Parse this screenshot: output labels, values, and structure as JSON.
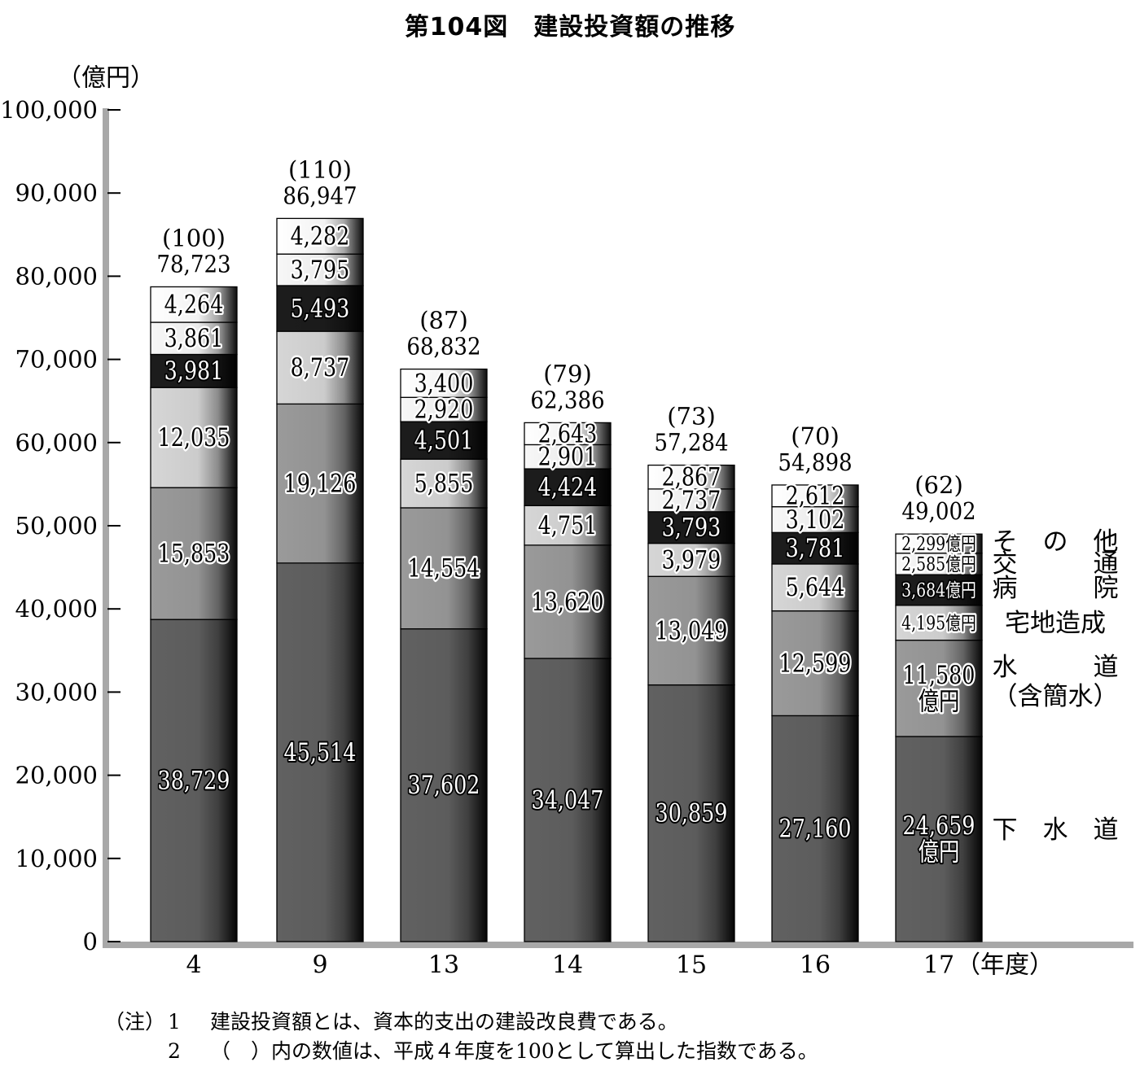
{
  "title": "第104図　建設投資額の推移",
  "notes": {
    "prefix": "（注）",
    "items": [
      {
        "num": "1",
        "text": "建設投資額とは、資本的支出の建設改良費である。"
      },
      {
        "num": "2",
        "text": "（　）内の数値は、平成４年度を100として算出した指数である。"
      }
    ]
  },
  "chart_data": {
    "type": "bar",
    "stacked": true,
    "ylabel": "（億円）",
    "xlabel": "（年度）",
    "ylim": [
      0,
      100000
    ],
    "yticks": [
      "0",
      "10,000",
      "20,000",
      "30,000",
      "40,000",
      "50,000",
      "60,000",
      "70,000",
      "80,000",
      "90,000",
      "100,000"
    ],
    "categories": [
      "4",
      "9",
      "13",
      "14",
      "15",
      "16",
      "17"
    ],
    "totals": [
      "78,723",
      "86,947",
      "68,832",
      "62,386",
      "57,284",
      "54,898",
      "49,002"
    ],
    "total_values": [
      78723,
      86947,
      68832,
      62386,
      57284,
      54898,
      49002
    ],
    "indices": [
      "(100)",
      "(110)",
      "(87)",
      "(79)",
      "(73)",
      "(70)",
      "(62)"
    ],
    "series": [
      {
        "name": "下水道",
        "label_lines": [
          "下　水　道"
        ],
        "color": "#616161",
        "values": [
          38729,
          45514,
          37602,
          34047,
          30859,
          27160,
          24659
        ],
        "labels": [
          "38,729",
          "45,514",
          "37,602",
          "34,047",
          "30,859",
          "27,160",
          "24,659\n億円"
        ]
      },
      {
        "name": "水道（含簡水）",
        "label_lines": [
          "水　　　道",
          "（含簡水）"
        ],
        "color": "#9a9a9a",
        "values": [
          15853,
          19126,
          14554,
          13620,
          13049,
          12599,
          11580
        ],
        "labels": [
          "15,853",
          "19,126",
          "14,554",
          "13,620",
          "13,049",
          "12,599",
          "11,580\n億円"
        ]
      },
      {
        "name": "宅地造成",
        "label_lines": [
          "宅地造成"
        ],
        "color": "#d6d6d6",
        "values": [
          12035,
          8737,
          5855,
          4751,
          3979,
          5644,
          4195
        ],
        "labels": [
          "12,035",
          "8,737",
          "5,855",
          "4,751",
          "3,979",
          "5,644",
          "4,195億円"
        ]
      },
      {
        "name": "病院",
        "label_lines": [
          "病　　　院"
        ],
        "color": "#1c1c1c",
        "values": [
          3981,
          5493,
          4501,
          4424,
          3793,
          3781,
          3684
        ],
        "labels": [
          "3,981",
          "5,493",
          "4,501",
          "4,424",
          "3,793",
          "3,781",
          "3,684億円"
        ]
      },
      {
        "name": "交通",
        "label_lines": [
          "交　　　通"
        ],
        "color": "#f7f7f7",
        "values": [
          3861,
          3795,
          2920,
          2901,
          2737,
          3102,
          2585
        ],
        "labels": [
          "3,861",
          "3,795",
          "2,920",
          "2,901",
          "2,737",
          "3,102",
          "2,585億円"
        ]
      },
      {
        "name": "その他",
        "label_lines": [
          "そ　の　他"
        ],
        "color": "#ffffff",
        "values": [
          4264,
          4282,
          3400,
          2643,
          2867,
          2612,
          2299
        ],
        "labels": [
          "4,264",
          "4,282",
          "3,400",
          "2,643",
          "2,867",
          "2,612",
          "2,299億円"
        ]
      }
    ]
  }
}
